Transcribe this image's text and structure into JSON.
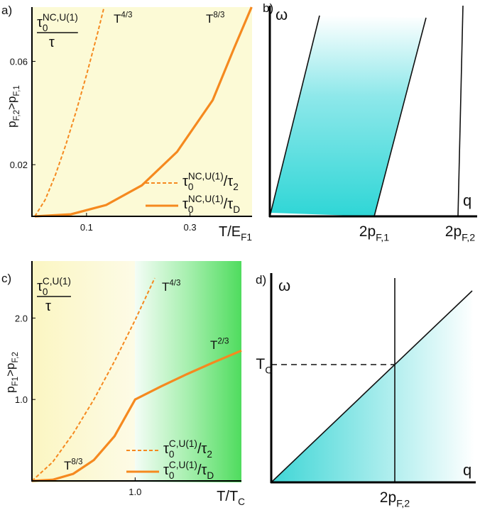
{
  "chart_data": [
    {
      "type": "line",
      "panel_label": "a)",
      "xlabel": [
        {
          "text": "T/E"
        },
        {
          "text": "F1",
          "script": "sub"
        }
      ],
      "ylabel": [
        {
          "text": "p"
        },
        {
          "text": "F,2",
          "script": "sub"
        },
        {
          "text": ">p"
        },
        {
          "text": "F,1",
          "script": "sub"
        }
      ],
      "xlim": [
        0,
        0.42
      ],
      "ylim": [
        0,
        0.081
      ],
      "xticks": [
        0.1,
        0.3
      ],
      "yticks": [
        0.02,
        0.06
      ],
      "inset_label": {
        "numerator": [
          {
            "text": "τ"
          },
          {
            "text": "0",
            "script": "sub"
          },
          {
            "text": "NC,U(1)",
            "script": "sup"
          }
        ],
        "denominator": [
          {
            "text": "τ"
          }
        ]
      },
      "series": [
        {
          "name": [
            {
              "text": "τ"
            },
            {
              "text": "0",
              "script": "sub"
            },
            {
              "text": "NC,U(1)",
              "script": "sup"
            },
            {
              "text": "/τ"
            },
            {
              "text": "2",
              "script": "sub"
            }
          ],
          "color": "#f5891f",
          "dashed": true,
          "annotation": [
            {
              "text": "T"
            },
            {
              "text": "4/3",
              "script": "sup"
            }
          ],
          "x": [
            0,
            0.02,
            0.04,
            0.06,
            0.08,
            0.1,
            0.12,
            0.134
          ],
          "values": [
            0,
            0.0064,
            0.0161,
            0.0277,
            0.0407,
            0.0548,
            0.0698,
            0.081
          ]
        },
        {
          "name": [
            {
              "text": "τ"
            },
            {
              "text": "0",
              "script": "sub"
            },
            {
              "text": "NC,U(1)",
              "script": "sup"
            },
            {
              "text": "/τ"
            },
            {
              "text": "D",
              "script": "sub"
            }
          ],
          "color": "#f5891f",
          "dashed": false,
          "annotation": [
            {
              "text": "T"
            },
            {
              "text": "8/3",
              "script": "sup"
            }
          ],
          "x": [
            0,
            0.07,
            0.138,
            0.207,
            0.275,
            0.344,
            0.385,
            0.419
          ],
          "values": [
            0,
            0.0008,
            0.0044,
            0.012,
            0.025,
            0.045,
            0.065,
            0.081
          ]
        }
      ]
    },
    {
      "type": "line",
      "panel_label": "c)",
      "xlabel": [
        {
          "text": "T/T"
        },
        {
          "text": "C",
          "script": "sub"
        }
      ],
      "ylabel": [
        {
          "text": "p"
        },
        {
          "text": "F1",
          "script": "sub"
        },
        {
          "text": ">p"
        },
        {
          "text": "F,2",
          "script": "sub"
        }
      ],
      "xlim": [
        0,
        2.03
      ],
      "ylim": [
        0,
        2.7
      ],
      "xticks": [
        {
          "value": 1,
          "label": "1.0"
        }
      ],
      "yticks": [
        {
          "value": 1,
          "label": "1.0"
        },
        {
          "value": 2,
          "label": "2.0"
        }
      ],
      "inset_label": {
        "numerator": [
          {
            "text": "τ"
          },
          {
            "text": "0",
            "script": "sub"
          },
          {
            "text": "C,U(1)",
            "script": "sup"
          }
        ],
        "denominator": [
          {
            "text": "τ"
          }
        ]
      },
      "series": [
        {
          "name": [
            {
              "text": "τ"
            },
            {
              "text": "0",
              "script": "sub"
            },
            {
              "text": "C,U(1)",
              "script": "sup"
            },
            {
              "text": "/τ"
            },
            {
              "text": "2",
              "script": "sub"
            }
          ],
          "color": "#f5891f",
          "dashed": true,
          "annotation": [
            {
              "text": "T"
            },
            {
              "text": "4/3",
              "script": "sup"
            }
          ],
          "x": [
            0,
            0.2,
            0.4,
            0.6,
            0.8,
            1.0,
            1.19
          ],
          "values": [
            0,
            0.231,
            0.582,
            1.0,
            1.47,
            1.975,
            2.49
          ]
        },
        {
          "name": [
            {
              "text": "τ"
            },
            {
              "text": "0",
              "script": "sub"
            },
            {
              "text": "C,U(1)",
              "script": "sup"
            },
            {
              "text": "/τ"
            },
            {
              "text": "D",
              "script": "sub"
            }
          ],
          "color": "#f5891f",
          "dashed": false,
          "annotation": [
            {
              "text": "T"
            },
            {
              "text": "8/3",
              "script": "sup"
            }
          ],
          "annotation2": [
            {
              "text": "T"
            },
            {
              "text": "2/3",
              "script": "sup"
            }
          ],
          "x": [
            0,
            0.2,
            0.4,
            0.6,
            0.8,
            1.0,
            1.25,
            1.5,
            1.75,
            2.03
          ],
          "values": [
            0,
            0.014,
            0.087,
            0.256,
            0.55,
            1.0,
            1.16,
            1.31,
            1.45,
            1.6
          ]
        }
      ]
    }
  ],
  "diagrams": [
    {
      "panel_label": "b)",
      "y_axis_label": "ω",
      "x_axis_label": "q",
      "tick_labels": [
        [
          {
            "text": "2p"
          },
          {
            "text": "F,1",
            "script": "sub"
          }
        ],
        [
          {
            "text": "2p"
          },
          {
            "text": "F,2",
            "script": "sub"
          }
        ]
      ]
    },
    {
      "panel_label": "d)",
      "y_axis_label": "ω",
      "x_axis_label": "q",
      "tick_labels": [
        [
          {
            "text": "2p"
          },
          {
            "text": "F,2",
            "script": "sub"
          }
        ]
      ],
      "level_label": [
        {
          "text": "T"
        },
        {
          "text": "C",
          "script": "sub"
        }
      ]
    }
  ]
}
